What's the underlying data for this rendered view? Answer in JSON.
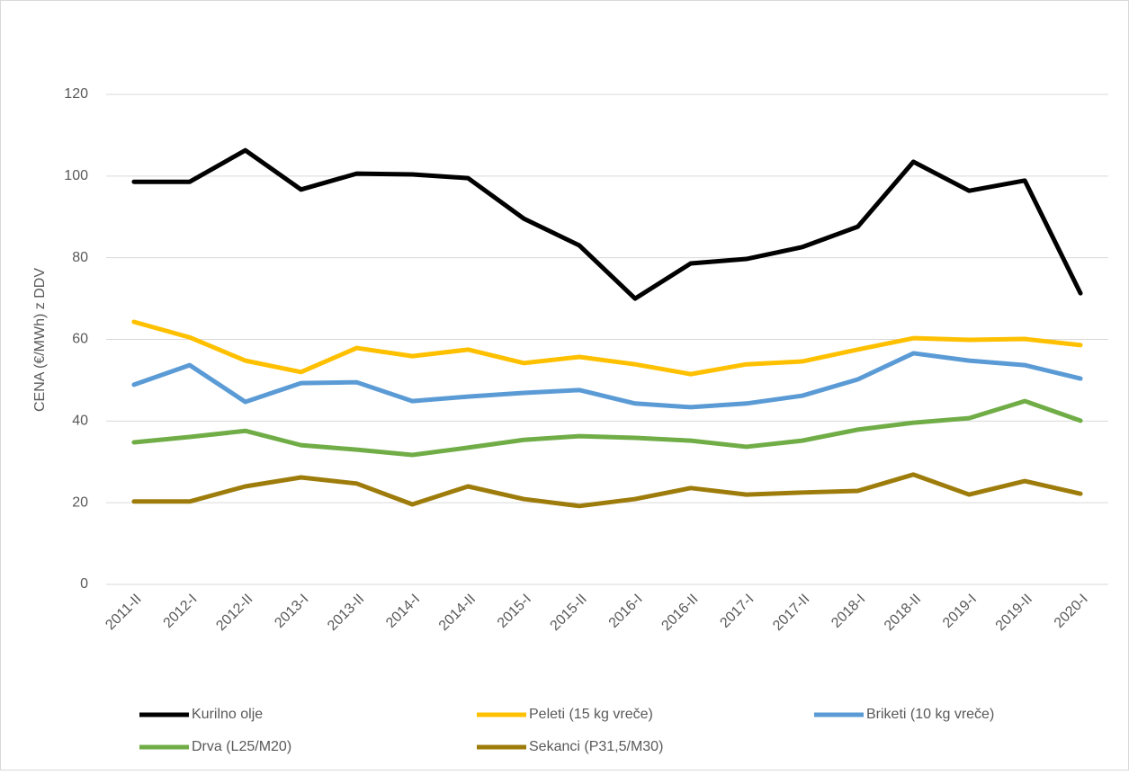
{
  "chart_data": {
    "type": "line",
    "y_axis_label": "CENA (€/MWh) z DDV",
    "categories": [
      "2011-II",
      "2012-I",
      "2012-II",
      "2013-I",
      "2013-II",
      "2014-I",
      "2014-II",
      "2015-I",
      "2015-II",
      "2016-I",
      "2016-II",
      "2017-I",
      "2017-II",
      "2018-I",
      "2018-II",
      "2019-I",
      "2019-II",
      "2020-I"
    ],
    "series": [
      {
        "name": "Kurilno olje",
        "color": "#000000",
        "values": [
          98.6,
          98.6,
          106.3,
          96.7,
          100.6,
          100.4,
          99.5,
          89.6,
          83.0,
          70.0,
          78.6,
          79.7,
          82.6,
          87.6,
          103.5,
          96.4,
          98.9,
          71.3
        ]
      },
      {
        "name": "Peleti (15 kg vreče)",
        "color": "#ffc000",
        "values": [
          64.3,
          60.5,
          54.8,
          52.0,
          57.9,
          55.9,
          57.5,
          54.2,
          55.7,
          53.9,
          51.5,
          53.9,
          54.6,
          57.5,
          60.3,
          59.9,
          60.1,
          58.6
        ]
      },
      {
        "name": "Briketi (10 kg vreče)",
        "color": "#5b9bd5",
        "values": [
          48.9,
          53.7,
          44.7,
          49.3,
          49.5,
          44.9,
          46.0,
          46.9,
          47.6,
          44.3,
          43.4,
          44.3,
          46.2,
          50.2,
          56.6,
          54.8,
          53.7,
          50.4
        ]
      },
      {
        "name": "Drva (L25/M20)",
        "color": "#70ad47",
        "values": [
          34.8,
          36.1,
          37.6,
          34.1,
          33.0,
          31.7,
          33.5,
          35.4,
          36.3,
          35.9,
          35.2,
          33.7,
          35.2,
          37.9,
          39.6,
          40.7,
          44.9,
          40.1
        ]
      },
      {
        "name": "Sekanci (P31,5/M30)",
        "color": "#9e7c0b",
        "values": [
          20.3,
          20.3,
          24.0,
          26.2,
          24.7,
          19.6,
          24.0,
          20.9,
          19.2,
          20.9,
          23.6,
          22.0,
          22.5,
          22.9,
          26.9,
          22.0,
          25.3,
          22.2
        ]
      }
    ],
    "ylim": [
      0,
      120
    ],
    "yticks": [
      0,
      20,
      40,
      60,
      80,
      100,
      120
    ],
    "grid": true
  }
}
